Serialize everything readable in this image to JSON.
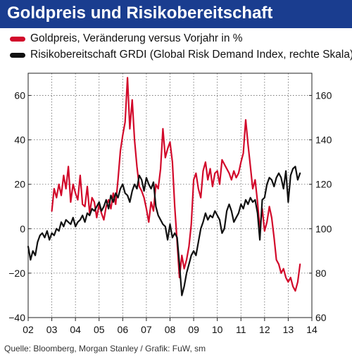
{
  "title": "Goldpreis und Risikobereitschaft",
  "source": "Quelle: Bloomberg, Morgan Stanley / Grafik: FuW, sm",
  "chart_data": {
    "type": "line",
    "title": "Goldpreis und Risikobereitschaft",
    "x_ticks": [
      "02",
      "03",
      "04",
      "05",
      "06",
      "07",
      "08",
      "09",
      "10",
      "11",
      "12",
      "13",
      "14"
    ],
    "xlim": [
      2002,
      2014
    ],
    "y_left": {
      "ticks": [
        "60",
        "40",
        "20",
        "0",
        "−20",
        "−40"
      ],
      "ylim": [
        -40,
        70
      ]
    },
    "y_right": {
      "ticks": [
        "160",
        "140",
        "120",
        "100",
        "80",
        "60"
      ],
      "ylim": [
        60,
        170
      ]
    },
    "grid": "dotted",
    "legend_position": "top-left",
    "series": [
      {
        "name": "Goldpreis, Veränderung versus Vorjahr in %",
        "color": "#d20a2b",
        "axis": "left",
        "x": [
          2003.0,
          2003.1,
          2003.2,
          2003.3,
          2003.4,
          2003.5,
          2003.6,
          2003.7,
          2003.8,
          2003.9,
          2004.0,
          2004.1,
          2004.2,
          2004.3,
          2004.4,
          2004.5,
          2004.6,
          2004.7,
          2004.8,
          2004.9,
          2005.0,
          2005.1,
          2005.2,
          2005.3,
          2005.4,
          2005.5,
          2005.6,
          2005.7,
          2005.8,
          2005.9,
          2006.0,
          2006.1,
          2006.2,
          2006.3,
          2006.4,
          2006.5,
          2006.6,
          2006.7,
          2006.8,
          2006.9,
          2007.0,
          2007.1,
          2007.2,
          2007.3,
          2007.4,
          2007.5,
          2007.6,
          2007.7,
          2007.8,
          2007.9,
          2008.0,
          2008.1,
          2008.2,
          2008.3,
          2008.4,
          2008.5,
          2008.6,
          2008.7,
          2008.8,
          2008.9,
          2009.0,
          2009.1,
          2009.2,
          2009.3,
          2009.4,
          2009.5,
          2009.6,
          2009.7,
          2009.8,
          2009.9,
          2010.0,
          2010.1,
          2010.2,
          2010.3,
          2010.4,
          2010.5,
          2010.6,
          2010.7,
          2010.8,
          2010.9,
          2011.0,
          2011.1,
          2011.2,
          2011.3,
          2011.4,
          2011.5,
          2011.6,
          2011.7,
          2011.8,
          2011.9,
          2012.0,
          2012.1,
          2012.2,
          2012.3,
          2012.4,
          2012.5,
          2012.6,
          2012.7,
          2012.8,
          2012.9,
          2013.0,
          2013.1,
          2013.2,
          2013.3,
          2013.4,
          2013.5
        ],
        "values": [
          8,
          18,
          14,
          20,
          15,
          24,
          18,
          28,
          12,
          20,
          16,
          13,
          24,
          11,
          10,
          19,
          7,
          14,
          12,
          5,
          11,
          7,
          4,
          10,
          13,
          9,
          16,
          11,
          22,
          35,
          42,
          48,
          68,
          45,
          58,
          40,
          28,
          19,
          17,
          14,
          9,
          3,
          12,
          8,
          20,
          18,
          27,
          45,
          32,
          36,
          39,
          30,
          10,
          -6,
          -22,
          -12,
          -18,
          -14,
          -8,
          2,
          22,
          25,
          18,
          14,
          26,
          30,
          22,
          27,
          19,
          25,
          26,
          20,
          31,
          29,
          27,
          25,
          22,
          26,
          23,
          25,
          30,
          34,
          49,
          38,
          28,
          18,
          22,
          12,
          0,
          9,
          -1,
          3,
          10,
          5,
          -4,
          -14,
          -16,
          -20,
          -18,
          -22,
          -24,
          -22,
          -26,
          -28,
          -24,
          -16
        ]
      },
      {
        "name": "Risikobereitschaft GRDI (Global Risk Demand Index, rechte Skala)",
        "color": "#111111",
        "axis": "right",
        "x": [
          2002.0,
          2002.1,
          2002.2,
          2002.3,
          2002.4,
          2002.5,
          2002.6,
          2002.7,
          2002.8,
          2002.9,
          2003.0,
          2003.1,
          2003.2,
          2003.3,
          2003.4,
          2003.5,
          2003.6,
          2003.7,
          2003.8,
          2003.9,
          2004.0,
          2004.1,
          2004.2,
          2004.3,
          2004.4,
          2004.5,
          2004.6,
          2004.7,
          2004.8,
          2004.9,
          2005.0,
          2005.1,
          2005.2,
          2005.3,
          2005.4,
          2005.5,
          2005.6,
          2005.7,
          2005.8,
          2005.9,
          2006.0,
          2006.1,
          2006.2,
          2006.3,
          2006.4,
          2006.5,
          2006.6,
          2006.7,
          2006.8,
          2006.9,
          2007.0,
          2007.1,
          2007.2,
          2007.3,
          2007.4,
          2007.5,
          2007.6,
          2007.7,
          2007.8,
          2007.9,
          2008.0,
          2008.1,
          2008.2,
          2008.3,
          2008.4,
          2008.5,
          2008.6,
          2008.7,
          2008.8,
          2008.9,
          2009.0,
          2009.1,
          2009.2,
          2009.3,
          2009.4,
          2009.5,
          2009.6,
          2009.7,
          2009.8,
          2009.9,
          2010.0,
          2010.1,
          2010.2,
          2010.3,
          2010.4,
          2010.5,
          2010.6,
          2010.7,
          2010.8,
          2010.9,
          2011.0,
          2011.1,
          2011.2,
          2011.3,
          2011.4,
          2011.5,
          2011.6,
          2011.7,
          2011.8,
          2011.9,
          2012.0,
          2012.1,
          2012.2,
          2012.3,
          2012.4,
          2012.5,
          2012.6,
          2012.7,
          2012.8,
          2012.9,
          2013.0,
          2013.1,
          2013.2,
          2013.3,
          2013.4,
          2013.5
        ],
        "values": [
          92,
          86,
          90,
          88,
          94,
          97,
          98,
          96,
          99,
          95,
          98,
          97,
          100,
          99,
          103,
          101,
          104,
          103,
          102,
          105,
          101,
          103,
          104,
          106,
          103,
          107,
          106,
          109,
          108,
          110,
          112,
          108,
          110,
          113,
          109,
          115,
          112,
          116,
          114,
          118,
          120,
          116,
          115,
          112,
          117,
          120,
          118,
          124,
          122,
          117,
          123,
          120,
          118,
          121,
          110,
          106,
          104,
          102,
          101,
          95,
          102,
          96,
          98,
          96,
          84,
          70,
          74,
          80,
          84,
          88,
          90,
          88,
          94,
          100,
          103,
          107,
          104,
          106,
          105,
          108,
          106,
          104,
          98,
          100,
          108,
          111,
          108,
          103,
          105,
          107,
          111,
          109,
          113,
          111,
          114,
          112,
          113,
          107,
          95,
          113,
          114,
          120,
          123,
          122,
          119,
          123,
          125,
          123,
          118,
          126,
          112,
          124,
          127,
          128,
          122,
          125
        ]
      }
    ]
  }
}
